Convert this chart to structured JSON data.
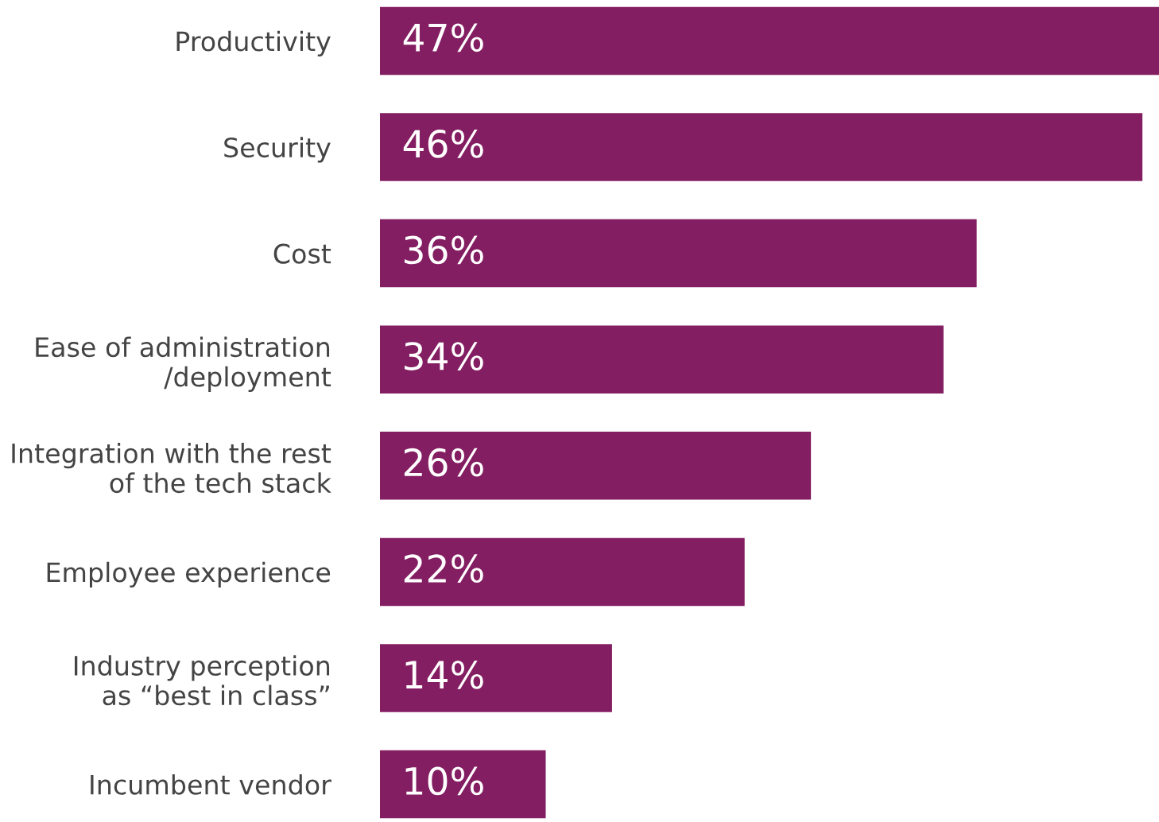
{
  "chart_data": {
    "type": "bar",
    "orientation": "horizontal",
    "categories": [
      "Productivity",
      "Security",
      "Cost",
      "Ease of administration\n/deployment",
      "Integration with the rest\nof the tech stack",
      "Employee experience",
      "Industry perception\nas “best in class”",
      "Incumbent vendor"
    ],
    "values": [
      47,
      46,
      36,
      34,
      26,
      22,
      14,
      10
    ],
    "value_labels": [
      "47%",
      "46%",
      "36%",
      "34%",
      "26%",
      "22%",
      "14%",
      "10%"
    ],
    "color": "#841e62",
    "grid": false,
    "legend": false
  }
}
